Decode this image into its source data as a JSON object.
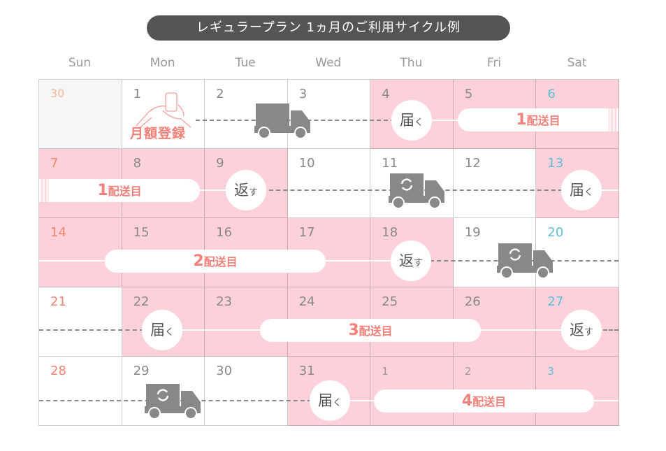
{
  "title": "レギュラープラン 1ヵ月のご利用サイクル例",
  "weekdays": [
    "Sun",
    "Mon",
    "Tue",
    "Wed",
    "Thu",
    "Fri",
    "Sat"
  ],
  "colors": {
    "highlight": "#fdd1da",
    "accent": "#f4807a",
    "sunday": "#f5826e",
    "saturday": "#5bbfd6",
    "text": "#888888",
    "title_bg": "#555555"
  },
  "weeks": [
    [
      {
        "day": "30",
        "month": "prev",
        "highlighted": false
      },
      {
        "day": "1",
        "month": "current",
        "highlighted": false
      },
      {
        "day": "2",
        "month": "current",
        "highlighted": false
      },
      {
        "day": "3",
        "month": "current",
        "highlighted": false
      },
      {
        "day": "4",
        "month": "current",
        "highlighted": true
      },
      {
        "day": "5",
        "month": "current",
        "highlighted": true
      },
      {
        "day": "6",
        "month": "current",
        "highlighted": true
      }
    ],
    [
      {
        "day": "7",
        "month": "current",
        "highlighted": true
      },
      {
        "day": "8",
        "month": "current",
        "highlighted": true
      },
      {
        "day": "9",
        "month": "current",
        "highlighted": true
      },
      {
        "day": "10",
        "month": "current",
        "highlighted": false
      },
      {
        "day": "11",
        "month": "current",
        "highlighted": false
      },
      {
        "day": "12",
        "month": "current",
        "highlighted": false
      },
      {
        "day": "13",
        "month": "current",
        "highlighted": true
      }
    ],
    [
      {
        "day": "14",
        "month": "current",
        "highlighted": true
      },
      {
        "day": "15",
        "month": "current",
        "highlighted": true
      },
      {
        "day": "16",
        "month": "current",
        "highlighted": true
      },
      {
        "day": "17",
        "month": "current",
        "highlighted": true
      },
      {
        "day": "18",
        "month": "current",
        "highlighted": true
      },
      {
        "day": "19",
        "month": "current",
        "highlighted": false
      },
      {
        "day": "20",
        "month": "current",
        "highlighted": false
      }
    ],
    [
      {
        "day": "21",
        "month": "current",
        "highlighted": false
      },
      {
        "day": "22",
        "month": "current",
        "highlighted": true
      },
      {
        "day": "23",
        "month": "current",
        "highlighted": true
      },
      {
        "day": "24",
        "month": "current",
        "highlighted": true
      },
      {
        "day": "25",
        "month": "current",
        "highlighted": true
      },
      {
        "day": "26",
        "month": "current",
        "highlighted": true
      },
      {
        "day": "27",
        "month": "current",
        "highlighted": true
      }
    ],
    [
      {
        "day": "28",
        "month": "current",
        "highlighted": false
      },
      {
        "day": "29",
        "month": "current",
        "highlighted": false
      },
      {
        "day": "30",
        "month": "current",
        "highlighted": false
      },
      {
        "day": "31",
        "month": "current",
        "highlighted": true
      },
      {
        "day": "1",
        "month": "next",
        "highlighted": true
      },
      {
        "day": "2",
        "month": "next",
        "highlighted": true
      },
      {
        "day": "3",
        "month": "next",
        "highlighted": true
      }
    ]
  ],
  "labels": {
    "register": "月額登録",
    "deliver_main": "届",
    "deliver_kana": "く",
    "return_main": "返",
    "return_kana": "す",
    "shipment_suffix": "配送目",
    "shipments": [
      "1",
      "2",
      "3",
      "4"
    ]
  },
  "icons": {
    "register": "hand-smartphone-icon",
    "truck": "truck-icon",
    "exchange_truck": "truck-exchange-icon"
  }
}
